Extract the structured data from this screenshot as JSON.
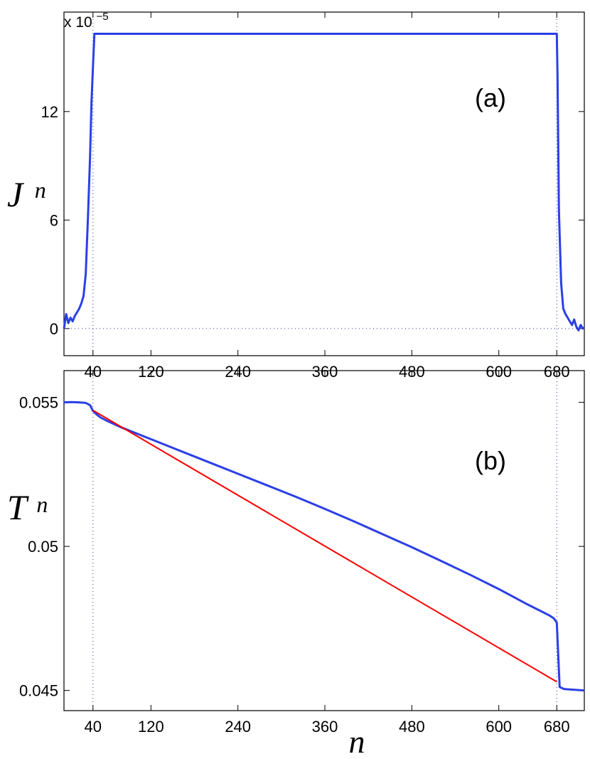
{
  "chart_data": [
    {
      "panel": "(a)",
      "type": "line",
      "ylabel": "J",
      "ylabel_sub": "n",
      "multiplier_prefix": "x 10",
      "multiplier_exponent": "−5",
      "xlim": [
        0,
        718
      ],
      "ylim": [
        -1.5,
        17.5
      ],
      "xticks": [
        40,
        120,
        240,
        360,
        480,
        600,
        680
      ],
      "yticks": [
        0,
        6,
        12
      ],
      "yticklabels": [
        "0",
        "6",
        "12"
      ],
      "reference_lines": {
        "vertical_x": [
          40,
          680
        ],
        "horizontal_y": [
          0
        ],
        "style": "dotted"
      },
      "series": [
        {
          "color": "#2b3fe6",
          "x": [
            0,
            3,
            6,
            9,
            12,
            15,
            18,
            21,
            24,
            27,
            30,
            33,
            36,
            38,
            40,
            42,
            680,
            681,
            683,
            686,
            689,
            692,
            695,
            698,
            701,
            704,
            707,
            710,
            713,
            716,
            718
          ],
          "y": [
            0.0,
            0.8,
            0.3,
            0.6,
            0.4,
            0.7,
            0.9,
            1.1,
            1.4,
            1.8,
            3.0,
            6.0,
            9.5,
            12.5,
            14.5,
            16.3,
            16.3,
            14.0,
            6.5,
            2.5,
            1.1,
            0.8,
            0.6,
            0.4,
            0.2,
            0.5,
            0.1,
            -0.1,
            0.2,
            0.0,
            0.05
          ]
        }
      ]
    },
    {
      "panel": "(b)",
      "type": "line",
      "ylabel": "T",
      "ylabel_sub": "n",
      "xlabel": "n",
      "xlim": [
        0,
        718
      ],
      "ylim": [
        0.0443,
        0.0561
      ],
      "xticks": [
        40,
        120,
        240,
        360,
        480,
        600,
        680
      ],
      "yticks": [
        0.045,
        0.05,
        0.055
      ],
      "yticklabels": [
        "0.045",
        "0.05",
        "0.055"
      ],
      "reference_lines": {
        "vertical_x": [
          40,
          680
        ],
        "style": "dotted"
      },
      "series": [
        {
          "color": "#2b3fe6",
          "x": [
            0,
            10,
            20,
            30,
            36,
            40,
            45,
            50,
            60,
            80,
            100,
            120,
            160,
            200,
            240,
            280,
            320,
            360,
            400,
            440,
            480,
            520,
            560,
            600,
            640,
            670,
            676,
            680,
            684,
            690,
            700,
            718
          ],
          "y": [
            0.055,
            0.05501,
            0.055,
            0.05498,
            0.0549,
            0.0547,
            0.05458,
            0.05448,
            0.05435,
            0.05412,
            0.05392,
            0.05372,
            0.05332,
            0.05292,
            0.05252,
            0.05212,
            0.05172,
            0.0513,
            0.05087,
            0.05042,
            0.04997,
            0.0495,
            0.04902,
            0.04852,
            0.04798,
            0.0476,
            0.0475,
            0.04735,
            0.04512,
            0.04505,
            0.04503,
            0.045
          ]
        },
        {
          "color": "#ff0000",
          "x": [
            40,
            680
          ],
          "y": [
            0.05472,
            0.0453
          ]
        }
      ]
    }
  ]
}
